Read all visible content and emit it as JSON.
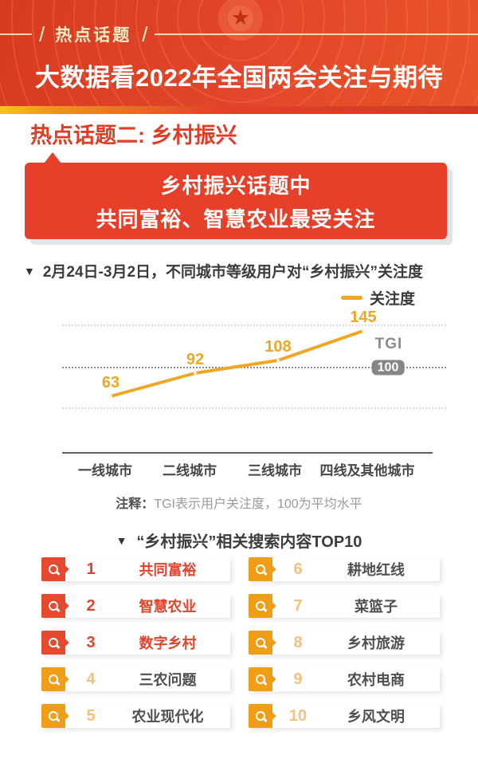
{
  "header": {
    "tag": "热点话题",
    "slash": "/",
    "title": "大数据看2022年全国两会关注与期待"
  },
  "section": {
    "heading": "热点话题二: 乡村振兴",
    "banner": [
      "乡村振兴话题中",
      "共同富裕、智慧农业最受关注"
    ]
  },
  "chart_block": {
    "marker": "▼",
    "title": "2月24日-3月2日，不同城市等级用户对“乡村振兴”关注度",
    "legend_label": "关注度",
    "tgi_label": "TGI",
    "tgi_badge": "100",
    "note_label": "注释：",
    "note_text": "TGI表示用户关注度，100为平均水平"
  },
  "chart_data": {
    "type": "line",
    "title": "2月24日-3月2日，不同城市等级用户对“乡村振兴”关注度",
    "categories": [
      "一线城市",
      "二线城市",
      "三线城市",
      "四线及其他城市"
    ],
    "series": [
      {
        "name": "关注度",
        "values": [
          63,
          92,
          108,
          145
        ]
      }
    ],
    "xlabel": "",
    "ylabel": "",
    "ylim": [
      40,
      160
    ],
    "reference_line": {
      "label": "TGI",
      "value": 100
    },
    "grid": "horizontal-dotted",
    "legend_position": "top-right",
    "line_color": "#F0A625",
    "note": "注释：TGI表示用户关注度，100为平均水平"
  },
  "top10": {
    "marker": "▼",
    "title": "“乡村振兴”相关搜索内容TOP10",
    "items": [
      {
        "rank": "1",
        "label": "共同富裕",
        "highlight": true
      },
      {
        "rank": "2",
        "label": "智慧农业",
        "highlight": true
      },
      {
        "rank": "3",
        "label": "数字乡村",
        "highlight": true
      },
      {
        "rank": "4",
        "label": "三农问题",
        "highlight": false
      },
      {
        "rank": "5",
        "label": "农业现代化",
        "highlight": false
      },
      {
        "rank": "6",
        "label": "耕地红线",
        "highlight": false
      },
      {
        "rank": "7",
        "label": "菜篮子",
        "highlight": false
      },
      {
        "rank": "8",
        "label": "乡村旅游",
        "highlight": false
      },
      {
        "rank": "9",
        "label": "农村电商",
        "highlight": false
      },
      {
        "rank": "10",
        "label": "乡风文明",
        "highlight": false
      }
    ]
  },
  "colors": {
    "header_red_dark": "#D63A20",
    "header_red_light": "#E95429",
    "tag_cream": "#F6EDC4",
    "strip_yellow": "#F6C51E",
    "brand_red": "#E23C25",
    "banner_red": "#E6402A",
    "badge_red": "#E6492E",
    "badge_orange": "#F09E18",
    "rank_amber": "#F3C07E",
    "line_amber": "#F0A625",
    "tgi_gray": "#868686",
    "text_dark": "#3C3C3C",
    "text_gray": "#9B9B9B"
  }
}
